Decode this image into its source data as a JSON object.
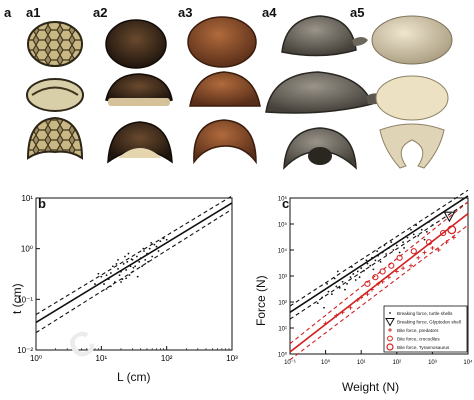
{
  "top": {
    "label_a": "a",
    "columns": [
      "a1",
      "a2",
      "a3",
      "a4",
      "a5"
    ],
    "shell_colors": {
      "a1": "#8a7a52",
      "a2": "#3a2a1e",
      "a3": "#8b4f2e",
      "a4": "#6f6a60",
      "a5": "#d9cdb0"
    }
  },
  "panel_b": {
    "label": "b",
    "xlabel": "L (cm)",
    "ylabel": "t (cm)",
    "x_ticks": [
      "10⁰",
      "10¹",
      "10²",
      "10³"
    ],
    "y_ticks": [
      "10¹",
      "10⁰",
      "10⁻¹",
      "10⁻²"
    ]
  },
  "panel_c": {
    "label": "c",
    "xlabel": "Weight (N)",
    "ylabel": "Force (N)",
    "x_ticks": [
      "10⁻¹",
      "10⁰",
      "10¹",
      "10²",
      "10³",
      "10⁴"
    ],
    "y_ticks": [
      "10⁶",
      "10⁵",
      "10⁴",
      "10³",
      "10²",
      "10¹",
      "10⁰"
    ],
    "legend": [
      "Breaking force, turtle shells",
      "Breaking force, Glyptodon shell",
      "Bite force, predators",
      "Bite force, crocodiles",
      "Bite force, Tyrannosaurus"
    ]
  },
  "chart_data": [
    {
      "type": "scatter",
      "panel": "b",
      "xlabel": "L (cm)",
      "ylabel": "t (cm)",
      "x_scale": "log",
      "y_scale": "log",
      "xlim": [
        1,
        1000
      ],
      "ylim": [
        0.01,
        10
      ],
      "grid": false,
      "points": [
        [
          10,
          0.28
        ],
        [
          12,
          0.3
        ],
        [
          14,
          0.33
        ],
        [
          11,
          0.2
        ],
        [
          15,
          0.45
        ],
        [
          18,
          0.4
        ],
        [
          20,
          0.35
        ],
        [
          22,
          0.5
        ],
        [
          25,
          0.55
        ],
        [
          28,
          0.45
        ],
        [
          30,
          0.6
        ],
        [
          16,
          0.22
        ],
        [
          13,
          0.25
        ],
        [
          19,
          0.3
        ],
        [
          24,
          0.38
        ],
        [
          35,
          0.7
        ],
        [
          40,
          0.65
        ],
        [
          45,
          0.9
        ],
        [
          50,
          0.8
        ],
        [
          55,
          1.0
        ],
        [
          60,
          0.7
        ],
        [
          65,
          1.2
        ],
        [
          70,
          1.1
        ],
        [
          80,
          1.4
        ],
        [
          33,
          0.45
        ],
        [
          27,
          0.3
        ],
        [
          21,
          0.25
        ],
        [
          38,
          0.55
        ],
        [
          42,
          0.45
        ],
        [
          17,
          0.5
        ],
        [
          9,
          0.32
        ],
        [
          8,
          0.2
        ],
        [
          12,
          0.16
        ],
        [
          14,
          0.18
        ],
        [
          23,
          0.7
        ],
        [
          26,
          0.8
        ],
        [
          30,
          0.35
        ],
        [
          47,
          0.6
        ],
        [
          52,
          0.55
        ],
        [
          58,
          1.3
        ],
        [
          90,
          1.6
        ],
        [
          100,
          1.5
        ],
        [
          75,
          0.9
        ],
        [
          36,
          0.28
        ],
        [
          44,
          1.0
        ],
        [
          29,
          0.62
        ],
        [
          31,
          0.42
        ],
        [
          18,
          0.6
        ],
        [
          20,
          0.22
        ],
        [
          24,
          0.26
        ]
      ],
      "series": [
        {
          "values": [
            [
              1,
              0.035
            ],
            [
              1000,
              8.0
            ]
          ]
        },
        {
          "values": [
            [
              1,
              0.05
            ],
            [
              1000,
              11.0
            ]
          ]
        },
        {
          "values": [
            [
              1,
              0.022
            ],
            [
              1000,
              6.0
            ]
          ]
        }
      ]
    },
    {
      "type": "scatter",
      "panel": "c",
      "xlabel": "Weight (N)",
      "ylabel": "Force (N)",
      "x_scale": "log",
      "y_scale": "log",
      "xlim": [
        0.1,
        10000
      ],
      "ylim": [
        1,
        1000000
      ],
      "grid": false,
      "legend_position": "bottom-right",
      "colors": {
        "turtle": "#111111",
        "bite": "#d32020"
      },
      "series": [
        {
          "name": "Breaking force, turtle shells",
          "values": [
            [
              0.8,
              150
            ],
            [
              1.2,
              250
            ],
            [
              1.5,
              200
            ],
            [
              2,
              400
            ],
            [
              2.5,
              350
            ],
            [
              3,
              600
            ],
            [
              4,
              500
            ],
            [
              5,
              900
            ],
            [
              6,
              1200
            ],
            [
              7,
              700
            ],
            [
              8,
              1500
            ],
            [
              10,
              2000
            ],
            [
              12,
              1600
            ],
            [
              15,
              3000
            ],
            [
              18,
              2500
            ],
            [
              20,
              5000
            ],
            [
              25,
              4000
            ],
            [
              30,
              6000
            ],
            [
              40,
              8000
            ],
            [
              50,
              7000
            ],
            [
              60,
              12000
            ],
            [
              80,
              10000
            ],
            [
              100,
              15000
            ],
            [
              150,
              20000
            ],
            [
              200,
              30000
            ],
            [
              300,
              40000
            ],
            [
              400,
              35000
            ],
            [
              500,
              60000
            ],
            [
              700,
              50000
            ],
            [
              1000,
              90000
            ],
            [
              1.1,
              500
            ],
            [
              1.8,
              800
            ],
            [
              3.5,
              300
            ],
            [
              9,
              900
            ],
            [
              14,
              4000
            ],
            [
              22,
              1800
            ],
            [
              35,
              3500
            ],
            [
              45,
              15000
            ],
            [
              70,
              20000
            ],
            [
              120,
              8000
            ],
            [
              250,
              60000
            ],
            [
              600,
              25000
            ],
            [
              2.2,
              1500
            ],
            [
              5.5,
              2200
            ],
            [
              28,
              9000
            ],
            [
              0.6,
              90
            ],
            [
              0.9,
              60
            ],
            [
              160,
              12000
            ],
            [
              350,
              90000
            ],
            [
              800,
              120000
            ]
          ]
        },
        {
          "name": "Breaking force, Glyptodon shell",
          "values": [
            [
              3000,
              200000
            ]
          ]
        },
        {
          "name": "Bite force, predators",
          "values": [
            [
              1,
              15
            ],
            [
              2,
              30
            ],
            [
              3,
              40
            ],
            [
              5,
              60
            ],
            [
              8,
              120
            ],
            [
              10,
              150
            ],
            [
              15,
              200
            ],
            [
              20,
              300
            ],
            [
              30,
              500
            ],
            [
              40,
              600
            ],
            [
              60,
              900
            ],
            [
              100,
              1500
            ],
            [
              150,
              2000
            ],
            [
              250,
              2500
            ],
            [
              400,
              5000
            ],
            [
              600,
              8000
            ],
            [
              1000,
              12000
            ],
            [
              1500,
              10000
            ],
            [
              2500,
              20000
            ],
            [
              4000,
              30000
            ]
          ]
        },
        {
          "name": "Bite force, crocodiles",
          "values": [
            [
              15,
              500
            ],
            [
              25,
              900
            ],
            [
              40,
              1500
            ],
            [
              70,
              2500
            ],
            [
              120,
              5000
            ],
            [
              300,
              9000
            ],
            [
              800,
              20000
            ],
            [
              2000,
              45000
            ]
          ]
        },
        {
          "name": "Bite force, Tyrannosaurus",
          "values": [
            [
              3500,
              60000
            ]
          ]
        }
      ],
      "fit_lines": [
        {
          "color": "#111111",
          "style": "solid",
          "values": [
            [
              0.1,
              40
            ],
            [
              10000,
              1200000
            ]
          ]
        },
        {
          "color": "#111111",
          "style": "dashed",
          "values": [
            [
              0.1,
              70
            ],
            [
              10000,
              2000000
            ]
          ]
        },
        {
          "color": "#111111",
          "style": "dashed",
          "values": [
            [
              0.1,
              22
            ],
            [
              10000,
              700000
            ]
          ]
        },
        {
          "color": "#d32020",
          "style": "solid",
          "values": [
            [
              0.1,
              1.2
            ],
            [
              10000,
              250000
            ]
          ]
        },
        {
          "color": "#d32020",
          "style": "dashed",
          "values": [
            [
              0.1,
              2.5
            ],
            [
              10000,
              700000
            ]
          ]
        },
        {
          "color": "#d32020",
          "style": "dashed",
          "values": [
            [
              0.1,
              0.6
            ],
            [
              10000,
              90000
            ]
          ]
        }
      ]
    }
  ]
}
